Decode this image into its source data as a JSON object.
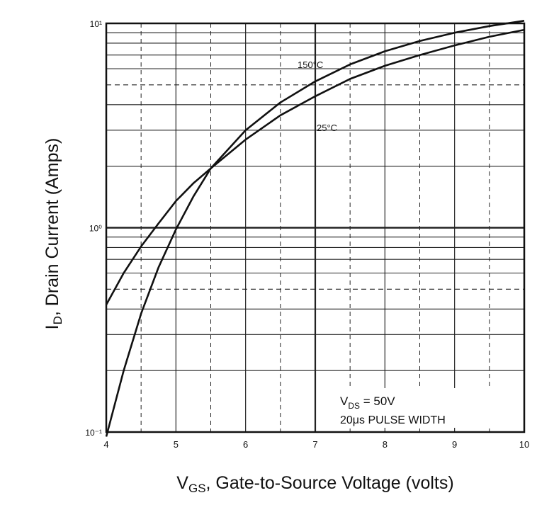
{
  "chart_data": {
    "type": "line",
    "xlabel": {
      "main": "V",
      "sub": "GS",
      "rest": ", Gate-to-Source Voltage (volts)"
    },
    "ylabel": {
      "main": "I",
      "sub": "D",
      "rest": ", Drain Current (Amps)"
    },
    "x_range": [
      4,
      10
    ],
    "y_range": [
      0.1,
      10
    ],
    "y_scale": "log",
    "x_ticks": [
      "4",
      "5",
      "6",
      "7",
      "8",
      "9",
      "10"
    ],
    "y_ticks": [
      {
        "value": 10,
        "label": "10¹"
      },
      {
        "value": 1,
        "label": "10⁰"
      },
      {
        "value": 0.1,
        "label": "10⁻¹"
      }
    ],
    "grid": true,
    "series": [
      {
        "x": [
          4.0,
          4.25,
          4.5,
          4.75,
          5.0,
          5.25,
          5.5,
          6.0,
          6.5,
          7.0,
          7.5,
          8.0,
          8.5,
          9.0,
          9.5,
          10.0
        ],
        "y": [
          0.42,
          0.6,
          0.81,
          1.05,
          1.35,
          1.65,
          1.95,
          2.7,
          3.55,
          4.4,
          5.35,
          6.2,
          7.0,
          7.8,
          8.6,
          9.3
        ]
      },
      {
        "x": [
          4.0,
          4.25,
          4.5,
          4.75,
          5.0,
          5.25,
          5.5,
          6.0,
          6.5,
          7.0,
          7.5,
          8.0,
          8.5,
          9.0,
          9.5,
          10.0
        ],
        "y": [
          0.095,
          0.2,
          0.38,
          0.64,
          0.98,
          1.42,
          1.95,
          3.0,
          4.1,
          5.2,
          6.3,
          7.3,
          8.2,
          9.0,
          9.7,
          10.3
        ]
      }
    ],
    "annotations": {
      "curve_hot": "150°C",
      "curve_cold": "25°C",
      "note_line1_main": "V",
      "note_line1_sub": "DS",
      "note_line1_rest": " = 50V",
      "note_line2": "20μs PULSE WIDTH"
    },
    "colors": {
      "line": "#111111",
      "grid": "#222222",
      "background": "#ffffff"
    }
  }
}
